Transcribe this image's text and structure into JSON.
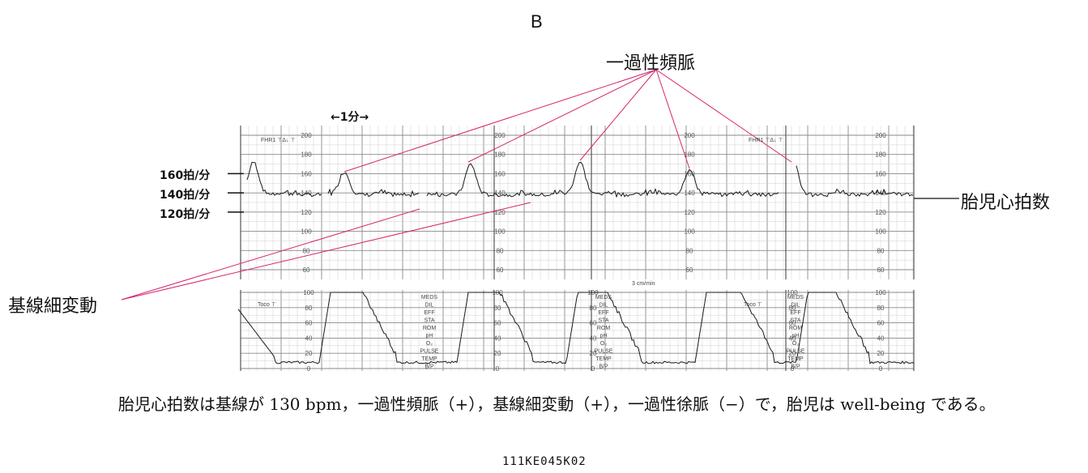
{
  "panel_label": "B",
  "labels": {
    "acceleration": "一過性頻脈",
    "fetal_heart_rate": "胎児心拍数",
    "baseline_variability": "基線細変動",
    "bpm_160": "160拍/分",
    "bpm_140": "140拍/分",
    "bpm_120": "120拍/分",
    "time_scale": "←1分→"
  },
  "strip": {
    "fhr_channel": "FHR1",
    "toco_channel": "Toco",
    "paper_speed": "3 cm/min",
    "fhr_ticks": [
      "200",
      "180",
      "160",
      "140",
      "120",
      "100",
      "80",
      "60"
    ],
    "toco_ticks": [
      "100",
      "80",
      "60",
      "40",
      "20",
      "0"
    ],
    "annotation_fields": [
      "MEDS",
      "DIL",
      "EFF",
      "STA",
      "ROM",
      "pH",
      "O₂",
      "PULSE",
      "TEMP",
      "B/P"
    ]
  },
  "caption": "胎児心拍数は基線が 130 bpm，一過性頻脈（+），基線細変動（+），一過性徐脈（−）で，胎児は well-being である。",
  "code": "111KE045K02",
  "colors": {
    "annotation_line": "#d6246e",
    "grid_major": "#8a8a8a",
    "grid_minor": "#cfcfcf",
    "trace": "#1a1a1a"
  }
}
